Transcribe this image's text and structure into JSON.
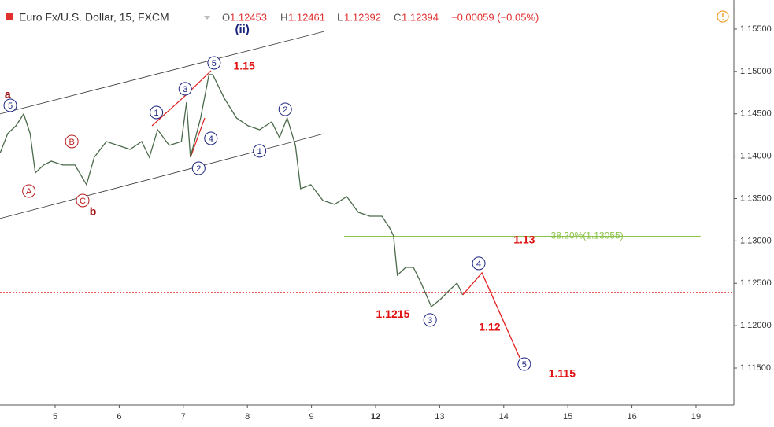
{
  "header": {
    "symbol": "Euro Fx/U.S. Dollar, 15, FXCM",
    "o_label": "O",
    "open": "1.12453",
    "h_label": "H",
    "high": "1.12461",
    "l_label": "L",
    "low": "1.12392",
    "c_label": "C",
    "close": "1.12394",
    "change": "−0.00059 (−0.05%)"
  },
  "chart_data": {
    "type": "line",
    "xlim": [
      -0.86,
      10.59
    ],
    "ylim": [
      1.11064,
      1.15843
    ],
    "xticks": [
      {
        "value": 0,
        "label": "5"
      },
      {
        "value": 1,
        "label": "6"
      },
      {
        "value": 2,
        "label": "7"
      },
      {
        "value": 3,
        "label": "8"
      },
      {
        "value": 4,
        "label": "9"
      },
      {
        "value": 5,
        "label": "12"
      },
      {
        "value": 6,
        "label": "13"
      },
      {
        "value": 7,
        "label": "14"
      },
      {
        "value": 8,
        "label": "15"
      },
      {
        "value": 9,
        "label": "16"
      },
      {
        "value": 10,
        "label": "19"
      }
    ],
    "yticks": [
      {
        "value": 1.155,
        "label": "1.15500"
      },
      {
        "value": 1.15,
        "label": "1.15000"
      },
      {
        "value": 1.145,
        "label": "1.14500"
      },
      {
        "value": 1.14,
        "label": "1.14000"
      },
      {
        "value": 1.135,
        "label": "1.13500"
      },
      {
        "value": 1.13,
        "label": "1.13000"
      },
      {
        "value": 1.125,
        "label": "1.12500"
      },
      {
        "value": 1.12,
        "label": "1.12000"
      },
      {
        "value": 1.115,
        "label": "1.11500"
      }
    ],
    "series": [
      {
        "color": "#4a6a4a",
        "width": 1.3,
        "x": [
          -0.86,
          -0.74,
          -0.61,
          -0.49,
          -0.39,
          -0.31,
          -0.18,
          -0.06,
          0.12,
          0.31,
          0.49,
          0.61,
          0.8,
          0.98,
          1.17,
          1.35,
          1.47,
          1.6,
          1.78,
          1.97,
          2.05,
          2.11,
          2.27,
          2.4,
          2.46,
          2.64,
          2.83,
          3.01,
          3.19,
          3.38,
          3.5,
          3.62,
          3.75,
          3.83,
          3.99,
          4.18,
          4.36,
          4.55,
          4.73,
          4.91,
          5.1,
          5.22,
          5.28,
          5.34,
          5.47,
          5.59,
          5.71,
          5.87,
          6.02,
          6.14,
          6.27,
          6.36
        ],
        "values": [
          1.14034,
          1.14266,
          1.14359,
          1.14498,
          1.14266,
          1.13802,
          1.13895,
          1.13941,
          1.13895,
          1.13895,
          1.13663,
          1.13987,
          1.14173,
          1.14127,
          1.1408,
          1.14173,
          1.13987,
          1.14312,
          1.14127,
          1.14173,
          1.14637,
          1.13987,
          1.14451,
          1.14962,
          1.14962,
          1.14683,
          1.14451,
          1.14359,
          1.14312,
          1.14405,
          1.1422,
          1.14451,
          1.14127,
          1.13616,
          1.13663,
          1.13477,
          1.13431,
          1.13523,
          1.13338,
          1.13291,
          1.13291,
          1.13152,
          1.1306,
          1.12595,
          1.12688,
          1.12688,
          1.12503,
          1.12224,
          1.12317,
          1.1241,
          1.12503,
          1.12363
        ]
      },
      {
        "color": "#e02020",
        "width": 1.3,
        "x": [
          6.36,
          6.66,
          7.25
        ],
        "values": [
          1.12363,
          1.12623,
          1.11621
        ]
      },
      {
        "color": "#333333",
        "width": 0.8,
        "x": [
          -0.86,
          4.2
        ],
        "values": [
          1.14498,
          1.15472
        ]
      },
      {
        "color": "#333333",
        "width": 0.8,
        "x": [
          -0.86,
          4.2
        ],
        "values": [
          1.13264,
          1.14266
        ]
      }
    ],
    "hlines": [
      {
        "value": 1.13055,
        "label": "38.20%(1.13055)",
        "color": "#8bc34a",
        "x": [
          4.51,
          10.07
        ]
      },
      {
        "value": 1.12394,
        "color": "#e04040",
        "dotted": true
      }
    ],
    "annotations": [
      {
        "text": "a",
        "x": -0.74,
        "y": 1.1473,
        "style": "bold-dark"
      },
      {
        "text": "5",
        "x": -0.7,
        "y": 1.146,
        "style": "circle-blue"
      },
      {
        "text": "A",
        "x": -0.41,
        "y": 1.13588,
        "style": "circle-red"
      },
      {
        "text": "B",
        "x": 0.26,
        "y": 1.14173,
        "style": "circle-red"
      },
      {
        "text": "C",
        "x": 0.43,
        "y": 1.13477,
        "style": "circle-red"
      },
      {
        "text": "b",
        "x": 0.59,
        "y": 1.13347,
        "style": "bold-dark"
      },
      {
        "text": "1",
        "x": 1.58,
        "y": 1.14516,
        "style": "circle-blue"
      },
      {
        "text": "3",
        "x": 2.03,
        "y": 1.14795,
        "style": "circle-blue"
      },
      {
        "text": "5",
        "x": 2.48,
        "y": 1.15101,
        "style": "circle-blue"
      },
      {
        "text": "4",
        "x": 2.43,
        "y": 1.1421,
        "style": "circle-blue"
      },
      {
        "text": "2",
        "x": 2.24,
        "y": 1.13857,
        "style": "circle-blue"
      },
      {
        "text": "(ii)",
        "x": 2.92,
        "y": 1.155,
        "style": "bold-navy"
      },
      {
        "text": "1.15",
        "x": 2.95,
        "y": 1.15064,
        "style": "bold-red"
      },
      {
        "text": "2",
        "x": 3.59,
        "y": 1.14553,
        "style": "circle-blue"
      },
      {
        "text": "1",
        "x": 3.19,
        "y": 1.14062,
        "style": "circle-blue"
      },
      {
        "text": "1.13",
        "x": 7.32,
        "y": 1.13013,
        "style": "bold-red"
      },
      {
        "text": "4",
        "x": 6.61,
        "y": 1.12735,
        "style": "circle-blue"
      },
      {
        "text": "1.1215",
        "x": 5.27,
        "y": 1.1214,
        "style": "bold-red"
      },
      {
        "text": "3",
        "x": 5.85,
        "y": 1.12067,
        "style": "circle-blue"
      },
      {
        "text": "1.12",
        "x": 6.78,
        "y": 1.11983,
        "style": "bold-red"
      },
      {
        "text": "5",
        "x": 7.32,
        "y": 1.11547,
        "style": "circle-blue"
      },
      {
        "text": "1.115",
        "x": 7.91,
        "y": 1.11435,
        "style": "bold-red"
      }
    ]
  }
}
